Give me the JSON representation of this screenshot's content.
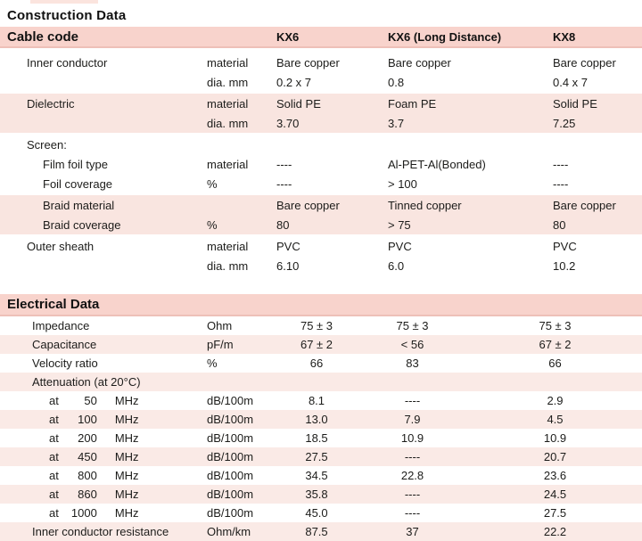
{
  "colors": {
    "header_pink": "#f8d3cc",
    "header_border": "#eec0b8",
    "group_pink": "#f9e5e0",
    "stripe_pink": "#faeae6",
    "top_strip": "#fbe4de",
    "text": "#1c1c1a"
  },
  "titles": {
    "construction": "Construction Data",
    "electrical": "Electrical Data"
  },
  "header": {
    "label": "Cable code",
    "codes": [
      "KX6",
      "KX6 (Long Distance)",
      "KX8"
    ]
  },
  "construction": {
    "groups": [
      {
        "shaded": false,
        "rows": [
          {
            "label": "Inner conductor",
            "indent": 1,
            "unit": "material",
            "values": [
              "Bare copper",
              "Bare copper",
              "Bare copper"
            ]
          },
          {
            "label": "",
            "unit": "dia. mm",
            "values": [
              "0.2 x 7",
              "0.8",
              "0.4 x 7"
            ]
          }
        ]
      },
      {
        "shaded": true,
        "rows": [
          {
            "label": "Dielectric",
            "indent": 1,
            "unit": "material",
            "values": [
              "Solid PE",
              "Foam PE",
              "Solid PE"
            ]
          },
          {
            "label": "",
            "unit": "dia. mm",
            "values": [
              "3.70",
              "3.7",
              "7.25"
            ]
          }
        ]
      },
      {
        "shaded": false,
        "rows": [
          {
            "label": "Screen:",
            "indent": 1,
            "unit": "",
            "values": [
              "",
              "",
              ""
            ]
          },
          {
            "label": "Film foil type",
            "indent": 2,
            "unit": "material",
            "values": [
              "----",
              "Al-PET-Al(Bonded)",
              "----"
            ]
          },
          {
            "label": "Foil coverage",
            "indent": 2,
            "unit": "%",
            "values": [
              "----",
              "> 100",
              "----"
            ]
          }
        ]
      },
      {
        "shaded": true,
        "rows": [
          {
            "label": "Braid material",
            "indent": 2,
            "unit": "",
            "values": [
              "Bare copper",
              "Tinned copper",
              "Bare copper"
            ]
          },
          {
            "label": "Braid coverage",
            "indent": 2,
            "unit": "%",
            "values": [
              "80",
              "> 75",
              "80"
            ]
          }
        ]
      },
      {
        "shaded": false,
        "rows": [
          {
            "label": "Outer sheath",
            "indent": 1,
            "unit": "material",
            "values": [
              "PVC",
              "PVC",
              "PVC"
            ]
          },
          {
            "label": "",
            "unit": "dia. mm",
            "values": [
              "6.10",
              "6.0",
              "10.2"
            ]
          }
        ]
      }
    ]
  },
  "electrical": {
    "rows": [
      {
        "label": "Impedance",
        "unit": "Ohm",
        "values": [
          "75 ± 3",
          "75 ± 3",
          "75 ± 3"
        ]
      },
      {
        "label": "Capacitance",
        "unit": "pF/m",
        "values": [
          "67 ± 2",
          "< 56",
          "67 ± 2"
        ]
      },
      {
        "label": "Velocity ratio",
        "unit": "%",
        "values": [
          "66",
          "83",
          "66"
        ]
      },
      {
        "label": "Attenuation (at 20°C)",
        "unit": "",
        "values": [
          "",
          "",
          ""
        ]
      },
      {
        "at": "at",
        "freq": "50",
        "mhz": "MHz",
        "unit": "dB/100m",
        "values": [
          "8.1",
          "----",
          "2.9"
        ]
      },
      {
        "at": "at",
        "freq": "100",
        "mhz": "MHz",
        "unit": "dB/100m",
        "values": [
          "13.0",
          "7.9",
          "4.5"
        ]
      },
      {
        "at": "at",
        "freq": "200",
        "mhz": "MHz",
        "unit": "dB/100m",
        "values": [
          "18.5",
          "10.9",
          "10.9"
        ]
      },
      {
        "at": "at",
        "freq": "450",
        "mhz": "MHz",
        "unit": "dB/100m",
        "values": [
          "27.5",
          "----",
          "20.7"
        ]
      },
      {
        "at": "at",
        "freq": "800",
        "mhz": "MHz",
        "unit": "dB/100m",
        "values": [
          "34.5",
          "22.8",
          "23.6"
        ]
      },
      {
        "at": "at",
        "freq": "860",
        "mhz": "MHz",
        "unit": "dB/100m",
        "values": [
          "35.8",
          "----",
          "24.5"
        ]
      },
      {
        "at": "at",
        "freq": "1000",
        "mhz": "MHz",
        "unit": "dB/100m",
        "values": [
          "45.0",
          "----",
          "27.5"
        ]
      },
      {
        "label": "Inner conductor resistance",
        "unit": "Ohm/km",
        "values": [
          "87.5",
          "37",
          "22.2"
        ]
      }
    ]
  }
}
